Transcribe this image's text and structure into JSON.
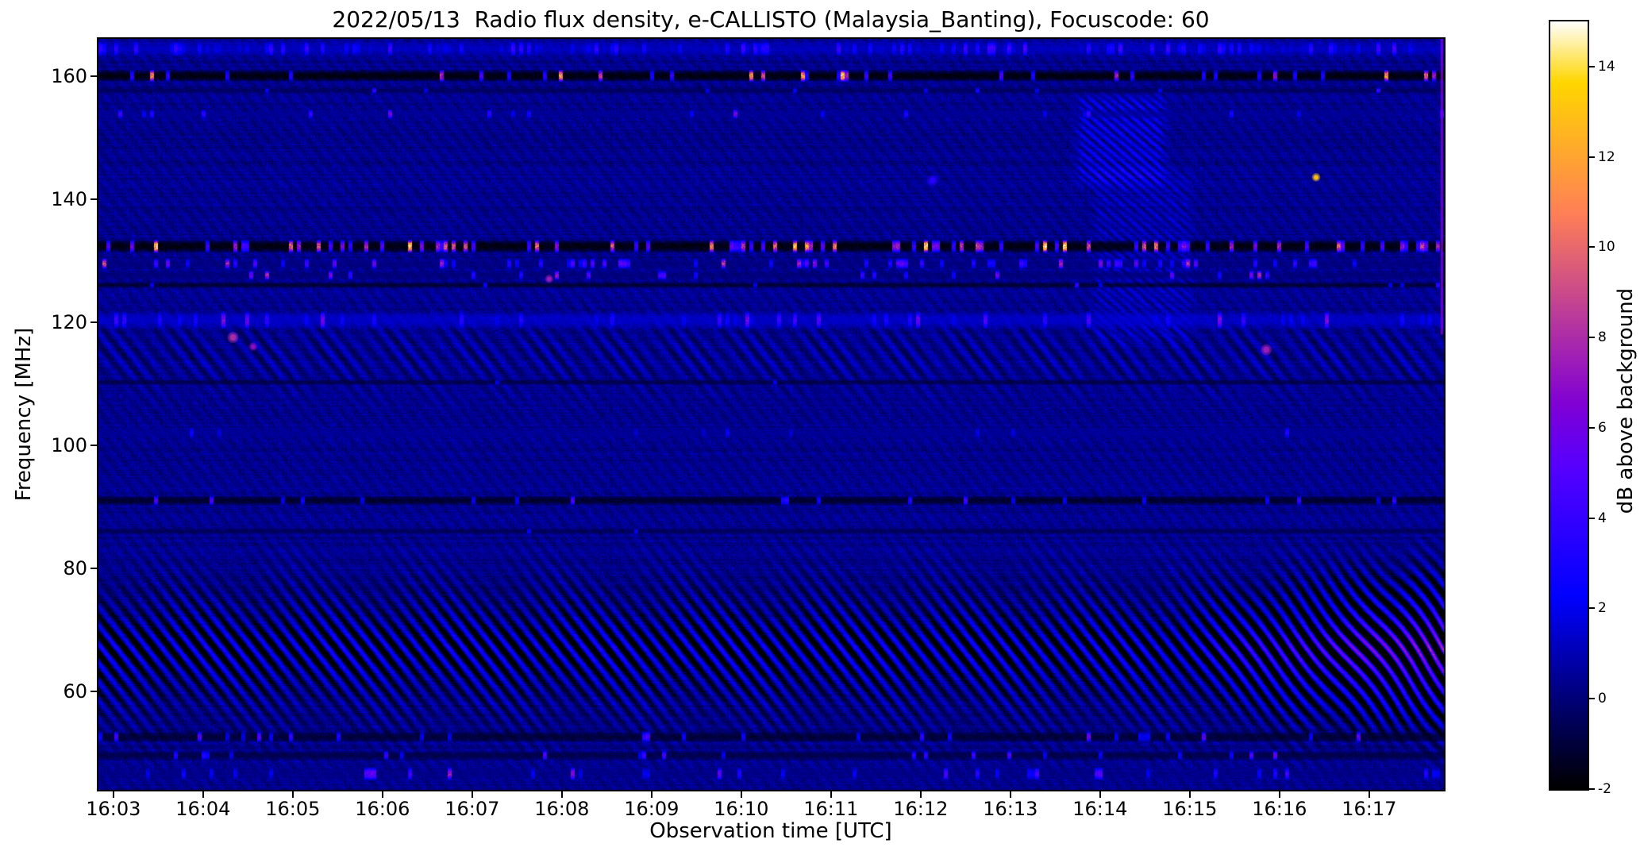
{
  "chart_data": {
    "type": "heatmap",
    "title": "2022/05/13  Radio flux density, e-CALLISTO (Malaysia_Banting), Focuscode: 60",
    "xlabel": "Observation time [UTC]",
    "ylabel": "Frequency [MHz]",
    "colorbar_label": "dB above background",
    "x_ticks": [
      "16:03",
      "16:04",
      "16:05",
      "16:06",
      "16:07",
      "16:08",
      "16:09",
      "16:10",
      "16:11",
      "16:12",
      "16:13",
      "16:14",
      "16:15",
      "16:16",
      "16:17"
    ],
    "x_start_min": 962.8333,
    "x_end_min": 977.8333,
    "y_ticks": [
      160,
      140,
      120,
      100,
      80,
      60
    ],
    "y_range": [
      44,
      166
    ],
    "colorbar_ticks": [
      14,
      12,
      10,
      8,
      6,
      4,
      2,
      0,
      -2
    ],
    "value_range": [
      -2,
      15
    ],
    "colormap_name": "gnuplot2",
    "colormap_stops": [
      {
        "v": -2,
        "c": "#000000"
      },
      {
        "v": 0,
        "c": "#000078"
      },
      {
        "v": 2,
        "c": "#0000f0"
      },
      {
        "v": 4,
        "c": "#3400ff"
      },
      {
        "v": 6,
        "c": "#7000e5"
      },
      {
        "v": 8,
        "c": "#ac2da9"
      },
      {
        "v": 10,
        "c": "#e9696d"
      },
      {
        "v": 12,
        "c": "#ffa531"
      },
      {
        "v": 14,
        "c": "#ffe143"
      },
      {
        "v": 15,
        "c": "#ffffff"
      }
    ],
    "background_level_db": 0.35,
    "noise_amplitude_db": 1.3,
    "features": {
      "rfi_bands": [
        {
          "f": 164.4,
          "hw": 1.3,
          "base": 1.1,
          "dens": 0.35,
          "smin": 1.5,
          "smax": 4.5
        },
        {
          "f": 160.0,
          "hw": 1.0,
          "base": -1.8,
          "dens": 0.12,
          "smin": 3.0,
          "smax": 14.0
        },
        {
          "f": 157.6,
          "hw": 0.5,
          "base": -0.5,
          "dens": 0.03,
          "smin": 2.0,
          "smax": 5.0
        },
        {
          "f": 153.8,
          "hw": 0.8,
          "base": 0.4,
          "dens": 0.06,
          "smin": 2.0,
          "smax": 6.5
        },
        {
          "f": 132.3,
          "hw": 1.1,
          "base": -1.8,
          "dens": 0.25,
          "smin": 4.0,
          "smax": 14.0
        },
        {
          "f": 129.5,
          "hw": 0.9,
          "base": 0.1,
          "dens": 0.16,
          "smin": 2.5,
          "smax": 8.5
        },
        {
          "f": 127.6,
          "hw": 0.8,
          "base": 0.0,
          "dens": 0.06,
          "smin": 2.5,
          "smax": 8.0
        },
        {
          "f": 126.0,
          "hw": 0.5,
          "base": -1.2,
          "dens": 0.03,
          "smin": 2.0,
          "smax": 5.0
        },
        {
          "f": 120.3,
          "hw": 1.5,
          "base": 1.2,
          "dens": 0.14,
          "smin": 2.0,
          "smax": 6.5
        },
        {
          "f": 110.2,
          "hw": 0.5,
          "base": -0.8,
          "dens": 0.02,
          "smin": 2.0,
          "smax": 4.0
        },
        {
          "f": 102.0,
          "hw": 1.0,
          "base": 0.4,
          "dens": 0.04,
          "smin": 1.5,
          "smax": 3.5
        },
        {
          "f": 91.0,
          "hw": 0.8,
          "base": -1.3,
          "dens": 0.07,
          "smin": 2.0,
          "smax": 6.0
        },
        {
          "f": 86.0,
          "hw": 0.5,
          "base": -0.6,
          "dens": 0.02,
          "smin": 1.5,
          "smax": 3.5
        },
        {
          "f": 52.6,
          "hw": 0.9,
          "base": -1.1,
          "dens": 0.1,
          "smin": 2.0,
          "smax": 7.0
        },
        {
          "f": 49.6,
          "hw": 0.8,
          "base": -0.8,
          "dens": 0.08,
          "smin": 2.0,
          "smax": 6.0
        },
        {
          "f": 46.6,
          "hw": 1.1,
          "base": 0.2,
          "dens": 0.1,
          "smin": 2.0,
          "smax": 7.0
        }
      ],
      "fringe_regions": [
        {
          "f_lo": 46,
          "f_hi": 85,
          "f_peak": 66.5,
          "sigma": 10.5,
          "amp": 2.2,
          "f_peak2": 67.0,
          "sigma2": 3.0,
          "amp2": 1.1,
          "pitch_x": 19,
          "pitch_y": 24,
          "boost_from": 0.8,
          "boost_max": 2.2
        },
        {
          "f_lo": 106,
          "f_hi": 124,
          "f_peak": 114.5,
          "sigma": 5.5,
          "amp": 0.85,
          "pitch_x": 21,
          "pitch_y": 27
        },
        {
          "f_lo": 44,
          "f_hi": 166,
          "f_peak": 105,
          "sigma": 999,
          "amp": 0.27,
          "pitch_x": 17,
          "pitch_y": 22
        }
      ],
      "burst_patches": [
        {
          "u0": 0.722,
          "u1": 0.798,
          "f0": 141,
          "f1": 158,
          "amp": 2.0,
          "pitch_x": 13,
          "pitch_y": 11
        },
        {
          "u0": 0.733,
          "u1": 0.818,
          "f0": 115,
          "f1": 146,
          "amp": 0.95,
          "pitch_x": 13,
          "pitch_y": 11
        }
      ],
      "bright_dots": [
        {
          "u": 0.905,
          "f": 143.5,
          "v": 13.0,
          "r": 3
        },
        {
          "u": 0.62,
          "f": 143.0,
          "v": 3.5,
          "r": 4
        },
        {
          "u": 0.868,
          "f": 115.5,
          "v": 7.5,
          "r": 4
        },
        {
          "u": 0.1,
          "f": 117.5,
          "v": 8.0,
          "r": 4
        },
        {
          "u": 0.115,
          "f": 116.0,
          "v": 7.0,
          "r": 3
        },
        {
          "u": 0.335,
          "f": 127.0,
          "v": 7.5,
          "r": 3
        }
      ],
      "vlines": [
        {
          "u": 0.9985,
          "f0": 118,
          "f1": 166,
          "v": 6.5,
          "w": 3
        }
      ]
    }
  }
}
